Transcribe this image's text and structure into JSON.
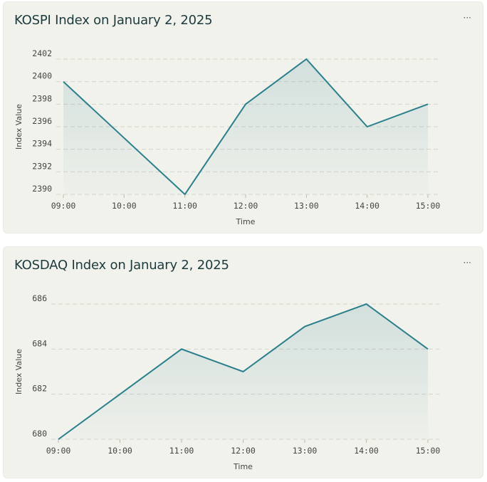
{
  "colors": {
    "line": "#2a7f8c",
    "grid": "#d4d4cc",
    "card_background": "#f2f2ec"
  },
  "charts": [
    {
      "menu_icon": "ellipsis-icon",
      "menu_label": "···"
    },
    {
      "menu_icon": "ellipsis-icon",
      "menu_label": "···"
    }
  ],
  "chart_data": [
    {
      "type": "area",
      "title": "KOSPI Index on January 2, 2025",
      "xlabel": "Time",
      "ylabel": "Index Value",
      "x": [
        "09:00",
        "10:00",
        "11:00",
        "12:00",
        "13:00",
        "14:00",
        "15:00"
      ],
      "series": [
        {
          "values": [
            2400,
            2395,
            2390,
            2398,
            2402,
            2396,
            2398
          ]
        }
      ],
      "ylim": [
        2390,
        2402
      ],
      "yticks": [
        2390,
        2392,
        2394,
        2396,
        2398,
        2400,
        2402
      ],
      "grid": true
    },
    {
      "type": "area",
      "title": "KOSDAQ Index on January 2, 2025",
      "xlabel": "Time",
      "ylabel": "Index Value",
      "x": [
        "09:00",
        "10:00",
        "11:00",
        "12:00",
        "13:00",
        "14:00",
        "15:00"
      ],
      "series": [
        {
          "values": [
            680,
            682,
            684,
            683,
            685,
            686,
            684
          ]
        }
      ],
      "ylim": [
        680,
        686
      ],
      "yticks": [
        680,
        682,
        684,
        686
      ],
      "grid": true
    }
  ]
}
